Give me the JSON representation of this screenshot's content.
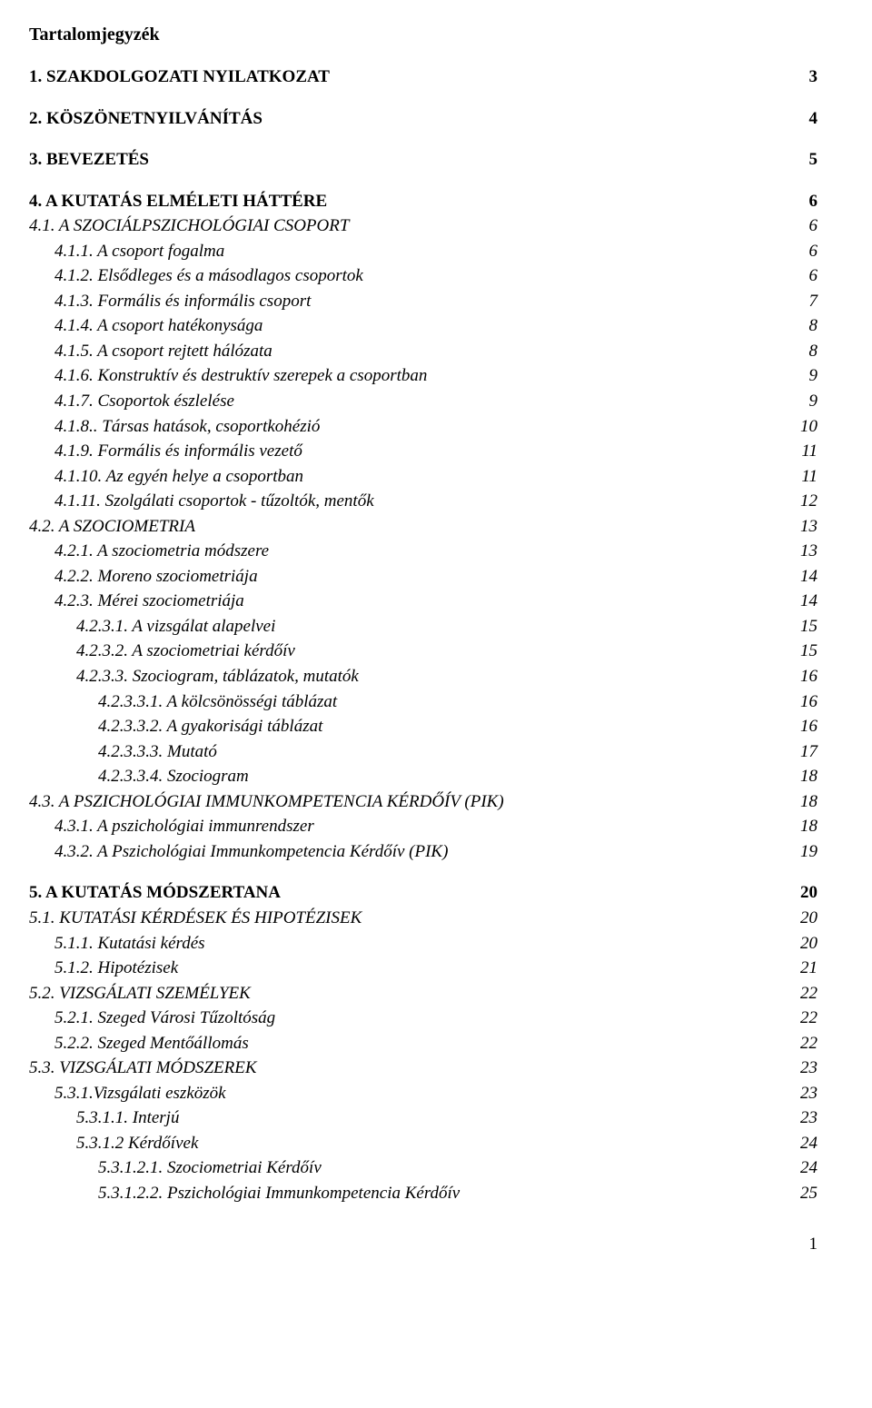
{
  "title": "Tartalomjegyzék",
  "page_number": "1",
  "entries": [
    {
      "label": "1. SZAKDOLGOZATI NYILATKOZAT",
      "page": "3",
      "indent": 0,
      "style": "bold",
      "gap_before": false
    },
    {
      "label": "2. KÖSZÖNETNYILVÁNÍTÁS",
      "page": "4",
      "indent": 0,
      "style": "bold",
      "gap_before": true
    },
    {
      "label": "3. BEVEZETÉS",
      "page": "5",
      "indent": 0,
      "style": "bold",
      "gap_before": true
    },
    {
      "label": "4. A KUTATÁS ELMÉLETI HÁTTÉRE",
      "page": "6",
      "indent": 0,
      "style": "bold",
      "gap_before": true
    },
    {
      "label": "4.1. A SZOCIÁLPSZICHOLÓGIAI CSOPORT",
      "page": "6",
      "indent": 0,
      "style": "italic",
      "gap_before": false
    },
    {
      "label": "4.1.1. A csoport fogalma",
      "page": "6",
      "indent": 1,
      "style": "italic",
      "gap_before": false
    },
    {
      "label": "4.1.2. Elsődleges és a másodlagos csoportok",
      "page": "6",
      "indent": 1,
      "style": "italic",
      "gap_before": false
    },
    {
      "label": "4.1.3. Formális és informális csoport",
      "page": "7",
      "indent": 1,
      "style": "italic",
      "gap_before": false
    },
    {
      "label": "4.1.4. A csoport hatékonysága",
      "page": "8",
      "indent": 1,
      "style": "italic",
      "gap_before": false
    },
    {
      "label": "4.1.5. A csoport rejtett hálózata",
      "page": "8",
      "indent": 1,
      "style": "italic",
      "gap_before": false
    },
    {
      "label": "4.1.6. Konstruktív és destruktív szerepek a csoportban",
      "page": "9",
      "indent": 1,
      "style": "italic",
      "gap_before": false
    },
    {
      "label": "4.1.7. Csoportok észlelése",
      "page": "9",
      "indent": 1,
      "style": "italic",
      "gap_before": false
    },
    {
      "label": "4.1.8.. Társas hatások, csoportkohézió",
      "page": "10",
      "indent": 1,
      "style": "italic",
      "gap_before": false
    },
    {
      "label": "4.1.9. Formális és informális vezető",
      "page": "11",
      "indent": 1,
      "style": "italic",
      "gap_before": false
    },
    {
      "label": "4.1.10. Az egyén helye a csoportban",
      "page": "11",
      "indent": 1,
      "style": "italic",
      "gap_before": false
    },
    {
      "label": "4.1.11. Szolgálati csoportok - tűzoltók, mentők",
      "page": "12",
      "indent": 1,
      "style": "italic",
      "gap_before": false
    },
    {
      "label": "4.2. A SZOCIOMETRIA",
      "page": "13",
      "indent": 0,
      "style": "italic",
      "gap_before": false
    },
    {
      "label": "4.2.1. A szociometria módszere",
      "page": "13",
      "indent": 1,
      "style": "italic",
      "gap_before": false
    },
    {
      "label": "4.2.2. Moreno szociometriája",
      "page": "14",
      "indent": 1,
      "style": "italic",
      "gap_before": false
    },
    {
      "label": "4.2.3. Mérei szociometriája",
      "page": "14",
      "indent": 1,
      "style": "italic",
      "gap_before": false
    },
    {
      "label": "4.2.3.1. A vizsgálat alapelvei",
      "page": "15",
      "indent": 2,
      "style": "italic",
      "gap_before": false
    },
    {
      "label": "4.2.3.2. A szociometriai kérdőív",
      "page": "15",
      "indent": 2,
      "style": "italic",
      "gap_before": false
    },
    {
      "label": "4.2.3.3. Szociogram, táblázatok, mutatók",
      "page": "16",
      "indent": 2,
      "style": "italic",
      "gap_before": false
    },
    {
      "label": "4.2.3.3.1. A kölcsönösségi táblázat",
      "page": "16",
      "indent": 3,
      "style": "italic",
      "gap_before": false
    },
    {
      "label": "4.2.3.3.2. A gyakorisági táblázat",
      "page": "16",
      "indent": 3,
      "style": "italic",
      "gap_before": false
    },
    {
      "label": "4.2.3.3.3. Mutató",
      "page": "17",
      "indent": 3,
      "style": "italic",
      "gap_before": false
    },
    {
      "label": "4.2.3.3.4. Szociogram",
      "page": "18",
      "indent": 3,
      "style": "italic",
      "gap_before": false
    },
    {
      "label": "4.3. A PSZICHOLÓGIAI IMMUNKOMPETENCIA KÉRDŐÍV (PIK)",
      "page": "18",
      "indent": 0,
      "style": "italic",
      "gap_before": false
    },
    {
      "label": "4.3.1. A pszichológiai immunrendszer",
      "page": "18",
      "indent": 1,
      "style": "italic",
      "gap_before": false
    },
    {
      "label": "4.3.2. A Pszichológiai Immunkompetencia Kérdőív (PIK)",
      "page": "19",
      "indent": 1,
      "style": "italic",
      "gap_before": false
    },
    {
      "label": "5. A KUTATÁS MÓDSZERTANA",
      "page": "20",
      "indent": 0,
      "style": "bold",
      "gap_before": true
    },
    {
      "label": "5.1. KUTATÁSI KÉRDÉSEK ÉS HIPOTÉZISEK",
      "page": "20",
      "indent": 0,
      "style": "italic",
      "gap_before": false
    },
    {
      "label": "5.1.1. Kutatási kérdés",
      "page": "20",
      "indent": 1,
      "style": "italic",
      "gap_before": false
    },
    {
      "label": "5.1.2. Hipotézisek",
      "page": "21",
      "indent": 1,
      "style": "italic",
      "gap_before": false
    },
    {
      "label": "5.2. VIZSGÁLATI SZEMÉLYEK",
      "page": "22",
      "indent": 0,
      "style": "italic",
      "gap_before": false
    },
    {
      "label": "5.2.1. Szeged Városi Tűzoltóság",
      "page": "22",
      "indent": 1,
      "style": "italic",
      "gap_before": false
    },
    {
      "label": "5.2.2. Szeged Mentőállomás",
      "page": "22",
      "indent": 1,
      "style": "italic",
      "gap_before": false
    },
    {
      "label": "5.3. VIZSGÁLATI MÓDSZEREK",
      "page": "23",
      "indent": 0,
      "style": "italic",
      "gap_before": false
    },
    {
      "label": "5.3.1.Vizsgálati eszközök",
      "page": "23",
      "indent": 1,
      "style": "italic",
      "gap_before": false
    },
    {
      "label": "5.3.1.1. Interjú",
      "page": "23",
      "indent": 2,
      "style": "italic",
      "gap_before": false
    },
    {
      "label": "5.3.1.2  Kérdőívek",
      "page": "24",
      "indent": 2,
      "style": "italic",
      "gap_before": false
    },
    {
      "label": "5.3.1.2.1. Szociometriai Kérdőív",
      "page": "24",
      "indent": 3,
      "style": "italic",
      "gap_before": false
    },
    {
      "label": "5.3.1.2.2. Pszichológiai Immunkompetencia Kérdőív",
      "page": "25",
      "indent": 3,
      "style": "italic",
      "gap_before": false
    }
  ]
}
